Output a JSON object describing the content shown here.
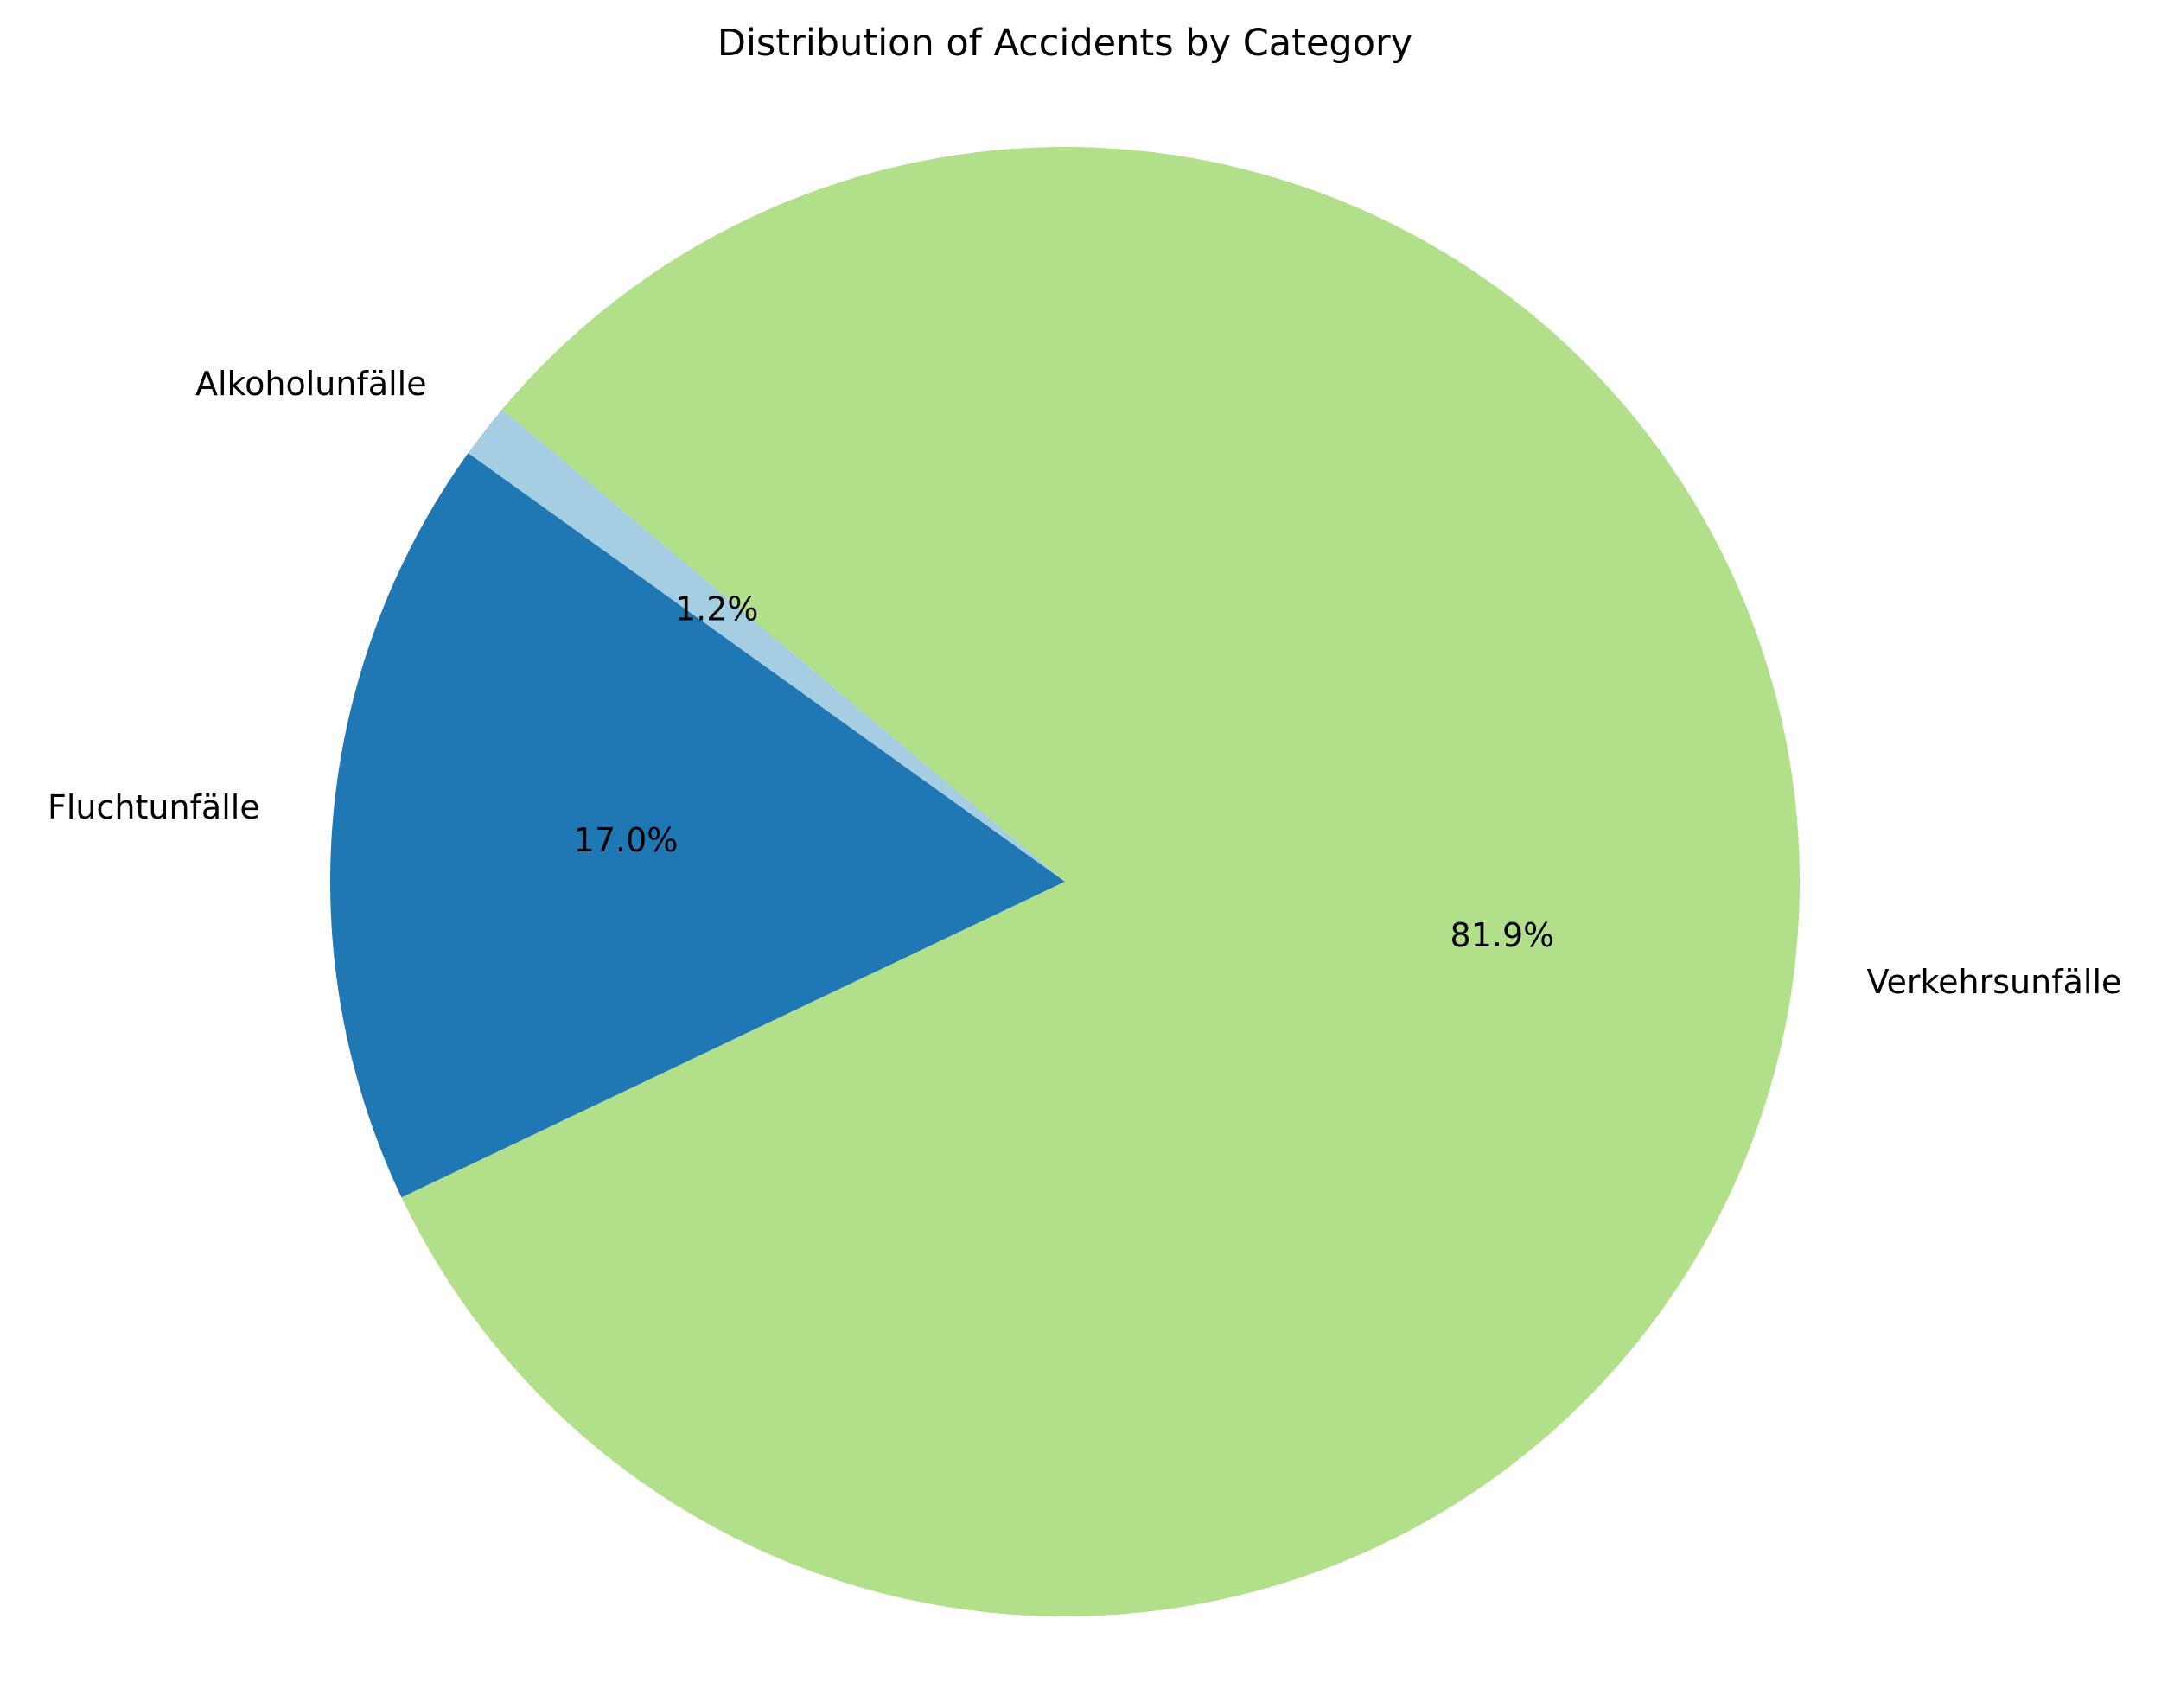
{
  "chart_data": {
    "type": "pie",
    "title": "Distribution of Accidents by Category",
    "slices": [
      {
        "label": "Alkoholunfälle",
        "percent": 1.2,
        "percent_label": "1.2%",
        "color": "#a6cee3"
      },
      {
        "label": "Fluchtunfälle",
        "percent": 17.0,
        "percent_label": "17.0%",
        "color": "#1f78b4"
      },
      {
        "label": "Verkehrsunfälle",
        "percent": 81.9,
        "percent_label": "81.9%",
        "color": "#b2df8a"
      }
    ],
    "start_angle_deg": 140,
    "direction": "counterclockwise"
  }
}
